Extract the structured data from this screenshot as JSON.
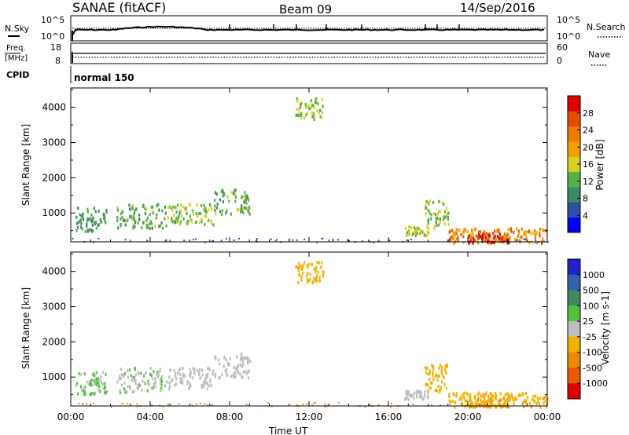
{
  "header": {
    "station": "SANAE (fitACF)",
    "beam": "Beam 09",
    "date": "14/Sep/2016"
  },
  "top_panels": {
    "nsky_label": "N.Sky",
    "nsky_ticks": [
      "10^5",
      "10^0"
    ],
    "nsearch_label": "N.Search",
    "nsearch_ticks": [
      "10^5",
      "10^0"
    ],
    "freq_label_1": "Freq.",
    "freq_label_2": "[MHz]",
    "freq_ticks": [
      "18",
      "8"
    ],
    "nave_label": "Nave",
    "nave_ticks": [
      "60",
      "0"
    ],
    "cpid_label": "CPID",
    "cpid_value": "normal 150"
  },
  "colors": {
    "power_scale": [
      "#0000ff",
      "#2b4fa6",
      "#3d8a63",
      "#55b045",
      "#d6d020",
      "#f4a100",
      "#f07a00",
      "#e84a00",
      "#e00000"
    ],
    "velocity_scale": [
      "#2222cc",
      "#3360b0",
      "#3d8a63",
      "#55c040",
      "#bdbdbd",
      "#f4b000",
      "#f08800",
      "#e85a00",
      "#e00000"
    ]
  },
  "chart_data": [
    {
      "type": "heatmap",
      "title": "Power",
      "ylabel": "Slant Range [km]",
      "xlabel": "",
      "x_ticks": [
        "00:00",
        "04:00",
        "08:00",
        "12:00",
        "16:00",
        "20:00",
        "00:00"
      ],
      "y_ticks": [
        "1000",
        "2000",
        "3000",
        "4000"
      ],
      "xlim": [
        0,
        24
      ],
      "ylim": [
        180,
        4550
      ],
      "colorbar": {
        "label": "Power [dB]",
        "ticks": [
          "4",
          "8",
          "12",
          "16",
          "20",
          "24",
          "28"
        ],
        "range": [
          0,
          32
        ]
      },
      "echo_regions": [
        {
          "t0": 0.2,
          "t1": 1.8,
          "r0": 500,
          "r1": 1200,
          "value": 10
        },
        {
          "t0": 2.3,
          "t1": 4.8,
          "r0": 600,
          "r1": 1300,
          "value": 12
        },
        {
          "t0": 4.8,
          "t1": 7.2,
          "r0": 700,
          "r1": 1300,
          "value": 14
        },
        {
          "t0": 7.2,
          "t1": 9.0,
          "r0": 1000,
          "r1": 1700,
          "value": 12
        },
        {
          "t0": 11.3,
          "t1": 12.7,
          "r0": 3700,
          "r1": 4300,
          "value": 14
        },
        {
          "t0": 16.8,
          "t1": 18.0,
          "r0": 400,
          "r1": 650,
          "value": 16
        },
        {
          "t0": 17.8,
          "t1": 19.0,
          "r0": 600,
          "r1": 1400,
          "value": 14
        },
        {
          "t0": 19.0,
          "t1": 24.0,
          "r0": 180,
          "r1": 600,
          "value": 22
        },
        {
          "t0": 20.0,
          "t1": 22.0,
          "r0": 180,
          "r1": 450,
          "value": 28
        }
      ]
    },
    {
      "type": "heatmap",
      "title": "Velocity",
      "ylabel": "Slant Range [km]",
      "xlabel": "Time UT",
      "x_ticks": [
        "00:00",
        "04:00",
        "08:00",
        "12:00",
        "16:00",
        "20:00",
        "00:00"
      ],
      "y_ticks": [
        "1000",
        "2000",
        "3000",
        "4000"
      ],
      "xlim": [
        0,
        24
      ],
      "ylim": [
        180,
        4550
      ],
      "colorbar": {
        "label": "Velocity [m s-1]",
        "ticks": [
          "1000",
          "500",
          "100",
          "25",
          "-25",
          "-100",
          "-500",
          "-1000"
        ],
        "range": [
          -1200,
          1200
        ]
      },
      "echo_regions": [
        {
          "t0": 0.2,
          "t1": 1.8,
          "r0": 500,
          "r1": 1200,
          "value": 150
        },
        {
          "t0": 2.3,
          "t1": 4.8,
          "r0": 600,
          "r1": 1300,
          "value": 120
        },
        {
          "t0": 4.8,
          "t1": 7.2,
          "r0": 700,
          "r1": 1300,
          "value": 80
        },
        {
          "t0": 7.2,
          "t1": 9.0,
          "r0": 1000,
          "r1": 1700,
          "value": 60
        },
        {
          "t0": 11.3,
          "t1": 12.7,
          "r0": 3700,
          "r1": 4300,
          "value": -300
        },
        {
          "t0": 16.8,
          "t1": 18.0,
          "r0": 400,
          "r1": 650,
          "value": 60
        },
        {
          "t0": 17.8,
          "t1": 19.0,
          "r0": 600,
          "r1": 1400,
          "value": -300
        },
        {
          "t0": 19.0,
          "t1": 24.0,
          "r0": 180,
          "r1": 600,
          "value": -200
        },
        {
          "t0": 20.0,
          "t1": 22.0,
          "r0": 180,
          "r1": 450,
          "value": -350
        }
      ]
    }
  ]
}
